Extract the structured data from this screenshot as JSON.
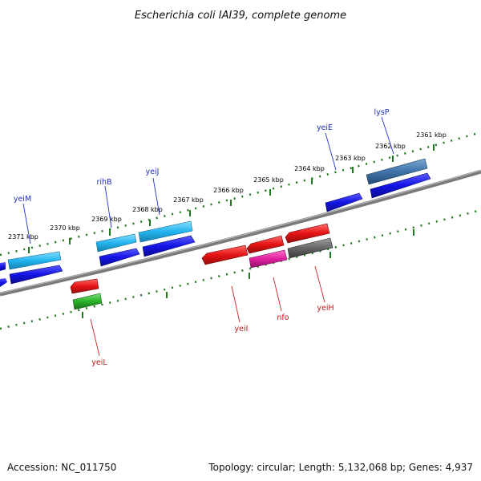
{
  "title": "Escherichia coli IAI39, complete genome",
  "footer": {
    "accession": "Accession: NC_011750",
    "topology": "Topology: circular; Length: 5,132,068 bp; Genes: 4,937"
  },
  "kbp_labels": [
    "2371 kbp",
    "2370 kbp",
    "2369 kbp",
    "2368 kbp",
    "2367 kbp",
    "2366 kbp",
    "2365 kbp",
    "2364 kbp",
    "2363 kbp",
    "2362 kbp",
    "2361 kbp"
  ],
  "genes_top": [
    "yeiM",
    "rihB",
    "yeiJ",
    "yeiE",
    "lysP"
  ],
  "genes_bottom": [
    "yeiL",
    "yeiI",
    "nfo",
    "yeiH"
  ],
  "colors": {
    "backbone": "#808080",
    "ticks": "#1f7a1f",
    "blue": "#1414e6",
    "cyan": "#22b4ee",
    "steel": "#3f74aa",
    "red": "#e61414",
    "magenta": "#e0209e",
    "gray": "#666666",
    "green": "#29b229",
    "label_top": "#1f2fbf",
    "label_bottom": "#c01818"
  }
}
